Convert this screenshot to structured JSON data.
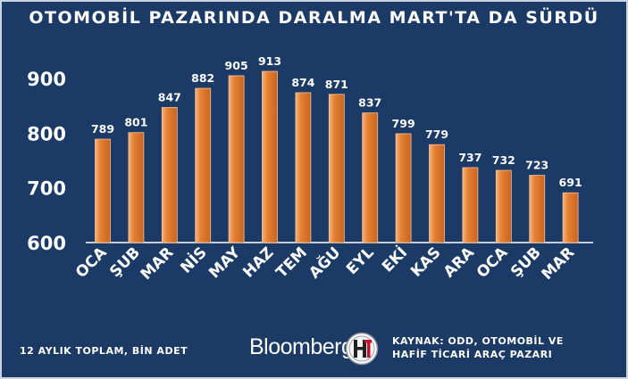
{
  "title": "OTOMOBİL PAZARINDA DARALMA MART'TA DA SÜRDÜ",
  "footer": {
    "unit_note": "12 AYLIK TOPLAM, BİN ADET",
    "brand": "Bloomberg",
    "source_line1": "KAYNAK: ODD, OTOMOBİL VE",
    "source_line2": "HAFİF TİCARİ ARAÇ PAZARI"
  },
  "colors": {
    "background": "#1b3a66",
    "bar": "#e07a2e",
    "bar_edge": "#f7c299",
    "text": "#ffffff",
    "gridline": "#ffffff"
  },
  "chart_data": {
    "type": "bar",
    "title": "OTOMOBİL PAZARINDA DARALMA MART'TA DA SÜRDÜ",
    "xlabel": "",
    "ylabel": "",
    "categories": [
      "OCA",
      "ŞUB",
      "MAR",
      "NİS",
      "MAY",
      "HAZ",
      "TEM",
      "AĞU",
      "EYL",
      "EKİ",
      "KAS",
      "ARA",
      "OCA",
      "ŞUB",
      "MAR"
    ],
    "values": [
      789,
      801,
      847,
      882,
      905,
      913,
      874,
      871,
      837,
      799,
      779,
      737,
      732,
      723,
      691
    ],
    "ylim": [
      600,
      950
    ],
    "yticks": [
      600,
      700,
      800,
      900
    ],
    "grid": false,
    "legend": "none"
  }
}
